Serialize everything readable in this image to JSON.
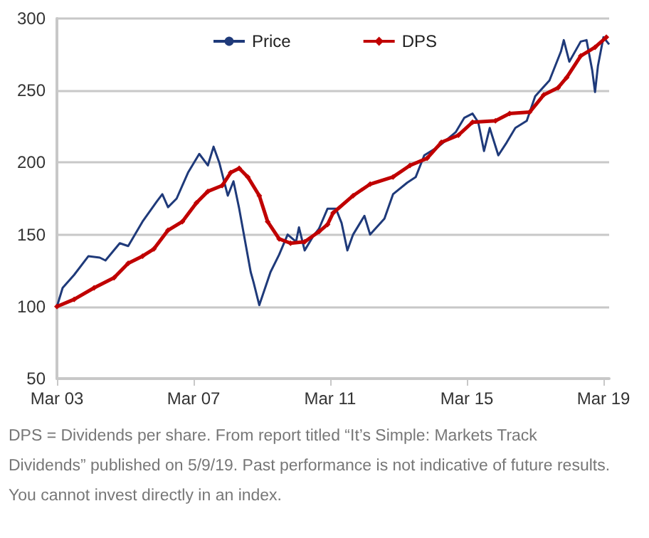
{
  "chart_data": {
    "type": "line",
    "x": [
      "2003-03",
      "2003-05",
      "2003-09",
      "2004-02",
      "2004-06",
      "2004-08",
      "2005-01",
      "2005-04",
      "2005-09",
      "2006-02",
      "2006-04",
      "2006-06",
      "2006-09",
      "2007-01",
      "2007-05",
      "2007-08",
      "2007-10",
      "2007-12",
      "2008-03",
      "2008-05",
      "2008-07",
      "2008-11",
      "2008-12",
      "2009-02",
      "2009-06",
      "2009-09",
      "2009-12",
      "2010-03",
      "2010-04",
      "2010-06",
      "2010-09",
      "2010-11",
      "2011-02",
      "2011-05",
      "2011-07",
      "2011-09",
      "2011-11",
      "2012-03",
      "2012-05",
      "2012-10",
      "2013-01",
      "2013-06",
      "2013-09",
      "2013-12",
      "2014-05",
      "2014-11",
      "2015-02",
      "2015-05",
      "2015-07",
      "2015-09",
      "2015-11",
      "2016-02",
      "2016-05",
      "2016-08",
      "2016-12",
      "2017-03",
      "2017-08",
      "2017-12",
      "2018-01",
      "2018-03",
      "2018-07",
      "2018-09",
      "2018-11",
      "2018-12",
      "2019-01",
      "2019-03",
      "2019-05"
    ],
    "series": [
      {
        "name": "Price",
        "color": "#1f3a7a",
        "values": [
          100,
          113,
          122,
          135,
          134,
          132,
          144,
          142,
          159,
          173,
          178,
          169,
          175,
          193,
          206,
          198,
          211,
          200,
          177,
          187,
          168,
          124,
          117,
          101,
          124,
          136,
          150,
          145,
          155,
          139,
          149,
          154,
          168,
          168,
          158,
          139,
          150,
          163,
          150,
          161,
          178,
          186,
          190,
          205,
          211,
          221,
          231,
          234,
          228,
          208,
          224,
          205,
          214,
          224,
          229,
          246,
          257,
          277,
          285,
          270,
          284,
          285,
          264,
          249,
          267,
          287,
          282
        ]
      },
      {
        "name": "DPS",
        "color": "#c00000",
        "marker": "diamond",
        "x": [
          "2003-03",
          "2003-09",
          "2004-04",
          "2004-11",
          "2005-04",
          "2005-09",
          "2006-01",
          "2006-06",
          "2006-11",
          "2007-04",
          "2007-08",
          "2008-01",
          "2008-04",
          "2008-07",
          "2008-10",
          "2009-02",
          "2009-05",
          "2009-09",
          "2010-01",
          "2010-06",
          "2010-11",
          "2011-02",
          "2011-04",
          "2011-11",
          "2012-05",
          "2013-01",
          "2013-07",
          "2014-01",
          "2014-06",
          "2014-12",
          "2015-05",
          "2016-01",
          "2016-06",
          "2017-01",
          "2017-06",
          "2017-11",
          "2018-02",
          "2018-07",
          "2018-12",
          "2019-04"
        ],
        "values": [
          100,
          105,
          113,
          120,
          130,
          135,
          140,
          153,
          159,
          172,
          180,
          184,
          193,
          196,
          190,
          177,
          159,
          147,
          144,
          145,
          152,
          157,
          165,
          177,
          185,
          190,
          198,
          203,
          214,
          219,
          228,
          229,
          234,
          235,
          247,
          252,
          259,
          274,
          280,
          287
        ]
      }
    ],
    "xlim": [
      "2003-03",
      "2019-05"
    ],
    "xticks": [
      {
        "value": "2003-03",
        "label": "Mar 03"
      },
      {
        "value": "2007-03",
        "label": "Mar 07"
      },
      {
        "value": "2011-03",
        "label": "Mar 11"
      },
      {
        "value": "2015-03",
        "label": "Mar 15"
      },
      {
        "value": "2019-03",
        "label": "Mar 19"
      }
    ],
    "ylim": [
      50,
      300
    ],
    "yticks": [
      50,
      100,
      150,
      200,
      250,
      300
    ],
    "grid": "y",
    "legend": "top",
    "annotations": [
      "DPS = Dividends per share. From report titled “It’s Simple: Markets Track Dividends” published on 5/9/19. Past performance is not indicative of future results. You cannot invest directly in an index."
    ]
  }
}
